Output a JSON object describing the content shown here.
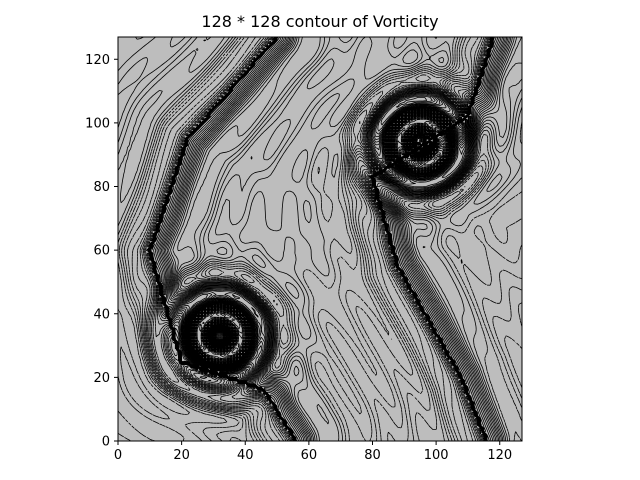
{
  "chart_data": {
    "type": "contour",
    "title": "128 * 128 contour of Vorticity",
    "xlabel": "",
    "ylabel": "",
    "xlim": [
      0,
      127
    ],
    "ylim": [
      0,
      127
    ],
    "x_ticks": [
      0,
      20,
      40,
      60,
      80,
      100,
      120
    ],
    "y_ticks": [
      0,
      20,
      40,
      60,
      80,
      100,
      120
    ],
    "grid": false,
    "grid_size": [
      128,
      128
    ],
    "background_color": "#bdbdbd",
    "line_color": "#000000",
    "features": [
      {
        "name": "vortex-lower",
        "center": [
          32,
          33
        ]
      },
      {
        "name": "vortex-upper",
        "center": [
          95,
          94
        ]
      },
      {
        "name": "shear-layer-left",
        "points": [
          [
            50,
            127
          ],
          [
            22,
            95
          ],
          [
            10,
            60
          ],
          [
            20,
            25
          ],
          [
            46,
            16
          ],
          [
            56,
            0
          ]
        ]
      },
      {
        "name": "shear-layer-right",
        "points": [
          [
            118,
            127
          ],
          [
            110,
            102
          ],
          [
            80,
            83
          ],
          [
            88,
            55
          ],
          [
            108,
            20
          ],
          [
            116,
            0
          ]
        ]
      }
    ]
  }
}
